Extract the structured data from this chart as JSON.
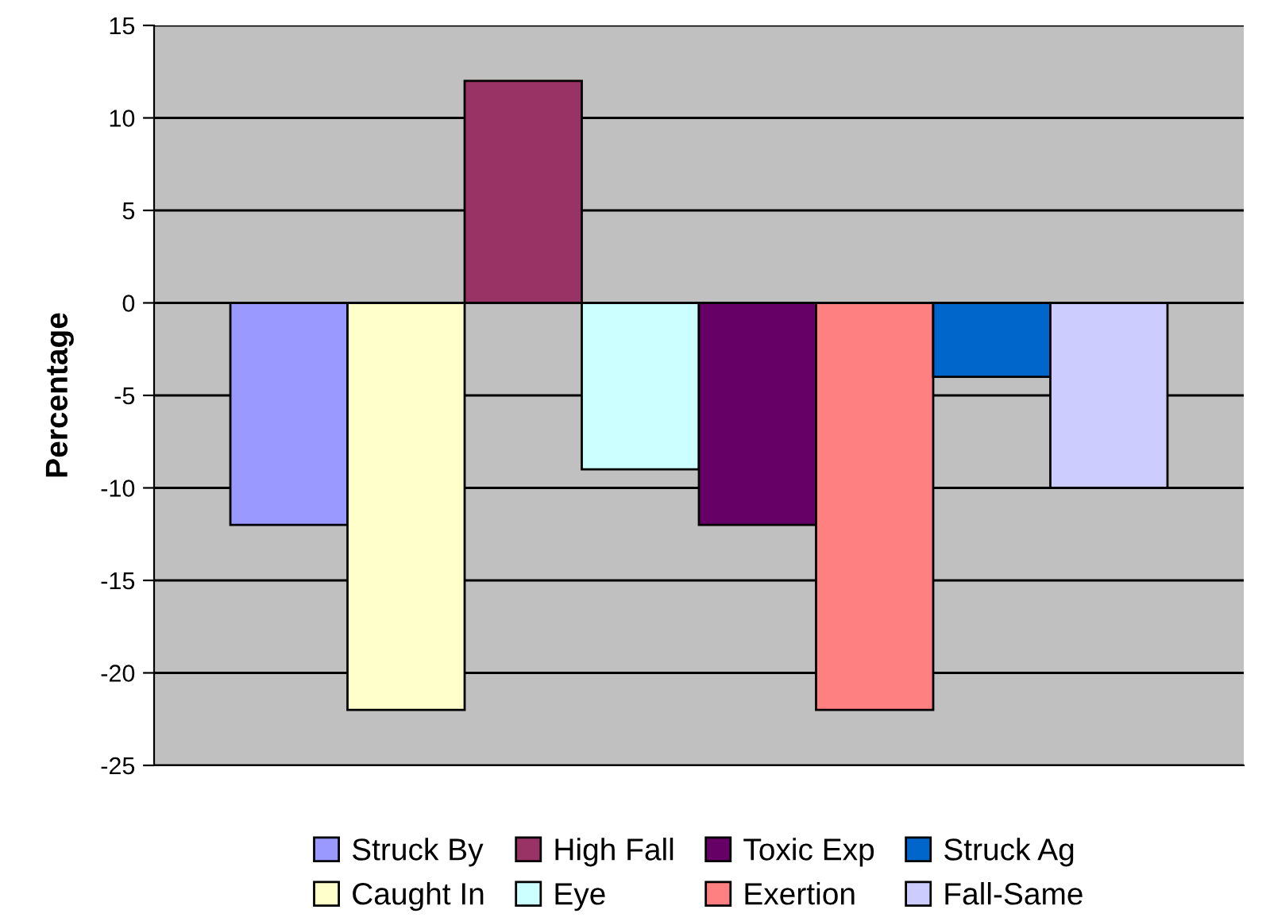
{
  "chart_data": {
    "type": "bar",
    "ylabel": "Percentage",
    "categories": [
      null
    ],
    "series": [
      {
        "name": "Struck By",
        "color": "#9999ff",
        "values": [
          -12
        ]
      },
      {
        "name": "Caught In",
        "color": "#ffffcc",
        "values": [
          -22
        ]
      },
      {
        "name": "High Fall",
        "color": "#993366",
        "values": [
          12
        ]
      },
      {
        "name": "Eye",
        "color": "#ccffff",
        "values": [
          -9
        ]
      },
      {
        "name": "Toxic Exp",
        "color": "#660066",
        "values": [
          -12
        ]
      },
      {
        "name": "Exertion",
        "color": "#ff8080",
        "values": [
          -22
        ]
      },
      {
        "name": "Struck Ag",
        "color": "#0066cc",
        "values": [
          -4
        ]
      },
      {
        "name": "Fall-Same",
        "color": "#ccccff",
        "values": [
          -10
        ]
      }
    ],
    "ylim": [
      -25,
      15
    ],
    "yticks": [
      -25,
      -20,
      -15,
      -10,
      -5,
      0,
      5,
      10,
      15
    ],
    "grid": "y",
    "legend": "bottom",
    "tick_labels": "y"
  }
}
